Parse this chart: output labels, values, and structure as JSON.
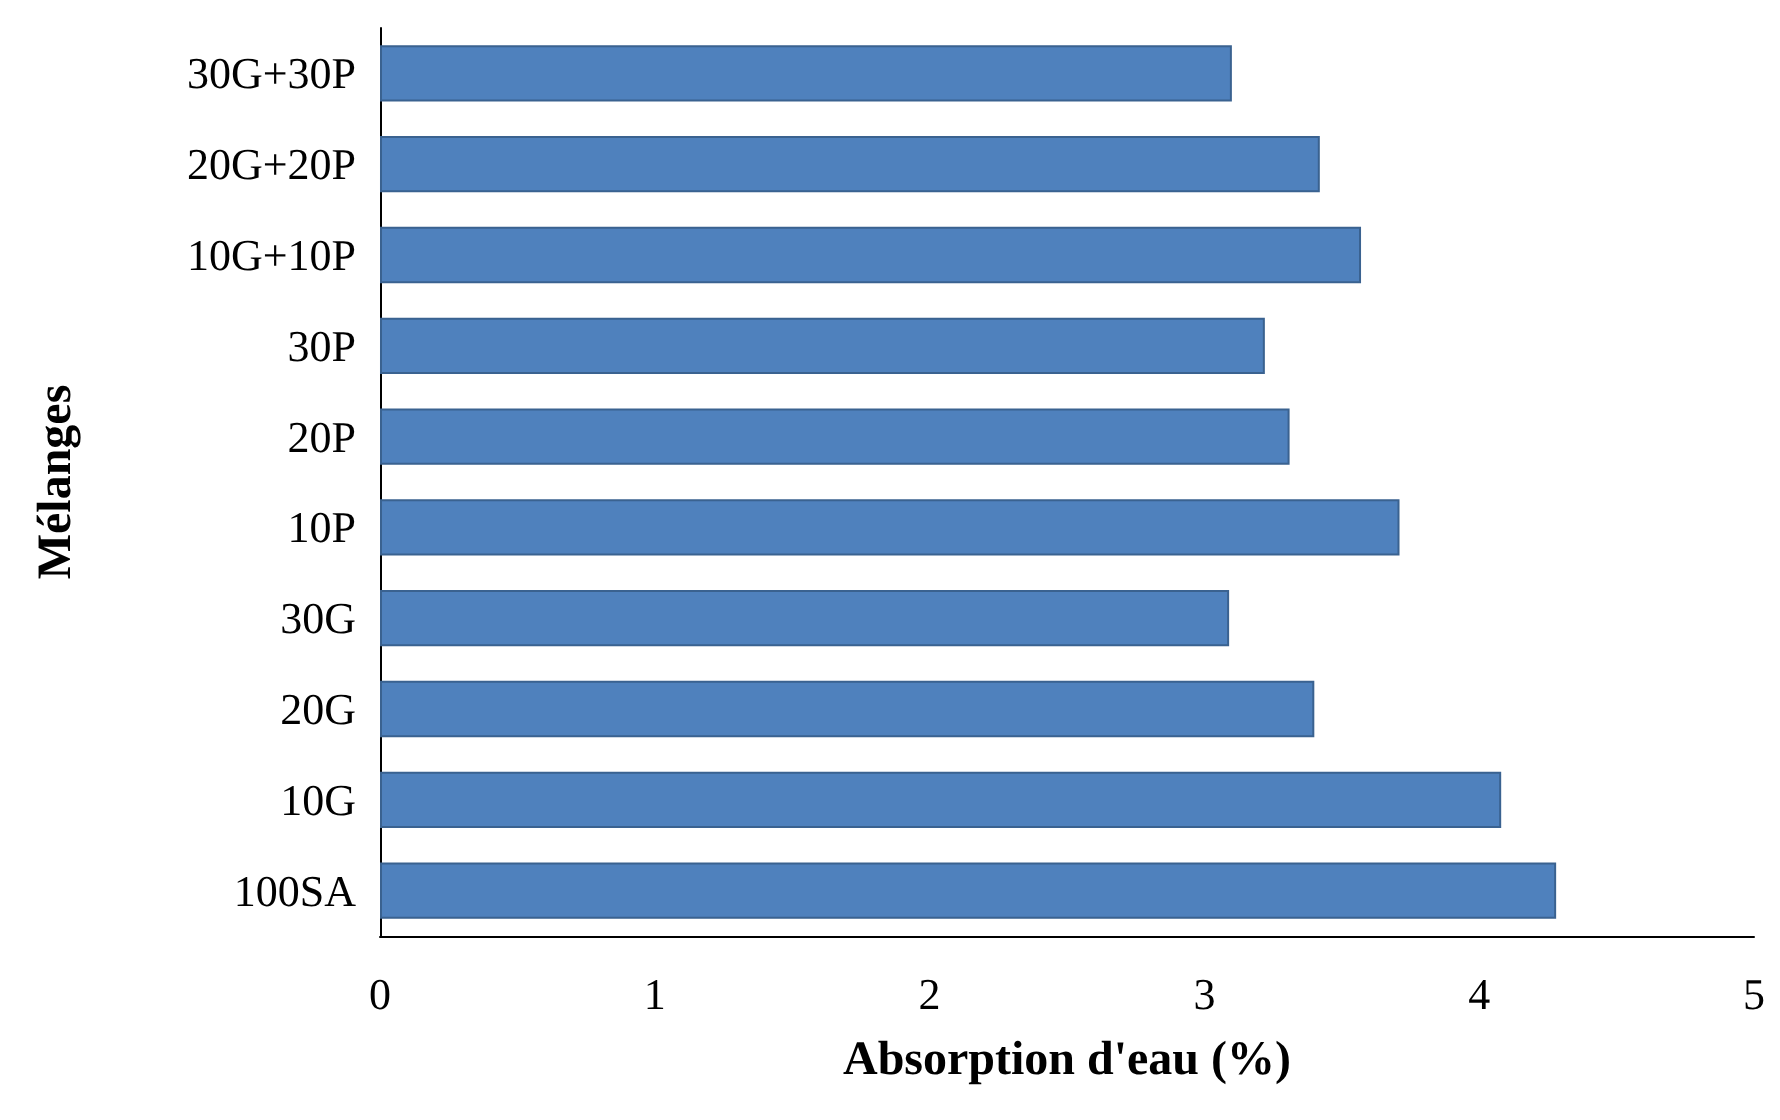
{
  "chart_data": {
    "type": "bar",
    "orientation": "horizontal",
    "xlabel": "Absorption d'eau (%)",
    "ylabel": "Mélanges",
    "categories": [
      "30G+30P",
      "20G+20P",
      "10G+10P",
      "30P",
      "20P",
      "10P",
      "30G",
      "20G",
      "10G",
      "100SA"
    ],
    "values": [
      3.1,
      3.42,
      3.57,
      3.22,
      3.31,
      3.71,
      3.09,
      3.4,
      4.08,
      4.28
    ],
    "color": "#4f81bd",
    "xlim": [
      0,
      5
    ],
    "xticks": [
      0,
      1,
      2,
      3,
      4,
      5
    ],
    "grid": false
  }
}
